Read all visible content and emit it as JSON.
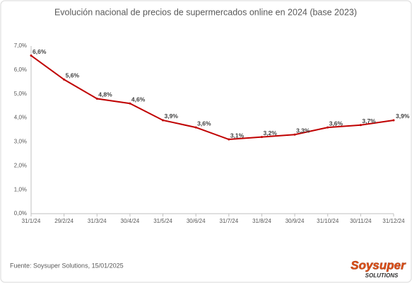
{
  "chart_data": {
    "type": "line",
    "title": "Evolución nacional de precios de supermercados online en 2024  (base 2023)",
    "categories": [
      "31/1/24",
      "29/2/24",
      "31/3/24",
      "30/4/24",
      "31/5/24",
      "30/6/24",
      "31/7/24",
      "31/8/24",
      "30/9/24",
      "31/10/24",
      "30/11/24",
      "31/12/24"
    ],
    "series": [
      {
        "color": "#c00000",
        "values": [
          6.6,
          5.6,
          4.8,
          4.6,
          3.9,
          3.6,
          3.1,
          3.2,
          3.3,
          3.6,
          3.7,
          3.9
        ],
        "value_labels": [
          "6,6%",
          "5,6%",
          "4,8%",
          "4,6%",
          "3,9%",
          "3,6%",
          "3,1%",
          "3,2%",
          "3,3%",
          "3,6%",
          "3,7%",
          "3,9%"
        ]
      }
    ],
    "ylim": [
      0,
      7
    ],
    "yticks": [
      {
        "value": 0,
        "label": "0,0%"
      },
      {
        "value": 1,
        "label": "1,0%"
      },
      {
        "value": 2,
        "label": "2,0%"
      },
      {
        "value": 3,
        "label": "3,0%"
      },
      {
        "value": 4,
        "label": "4,0%"
      },
      {
        "value": 5,
        "label": "5,0%"
      },
      {
        "value": 6,
        "label": "6,0%"
      },
      {
        "value": 7,
        "label": "7,0%"
      }
    ],
    "source": "Fuente: Soysuper Solutions, 15/01/2025"
  },
  "logo": {
    "name": "Soysuper",
    "tagline": "SOLUTIONS"
  }
}
